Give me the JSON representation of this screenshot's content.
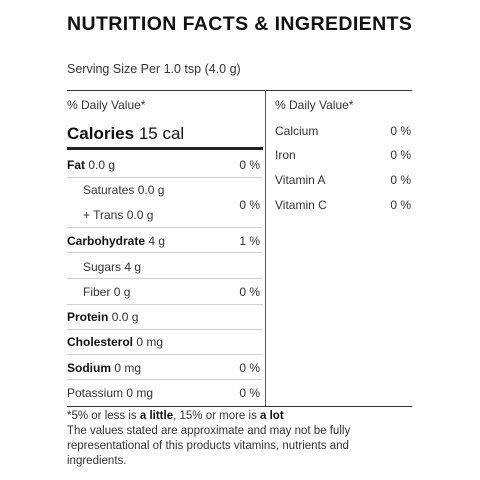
{
  "title": "NUTRITION FACTS & INGREDIENTS",
  "serving_size": "Serving Size Per 1.0 tsp (4.0 g)",
  "left_header": "% Daily Value*",
  "right_header": "% Daily Value*",
  "calories": {
    "label": "Calories",
    "value": "15 cal"
  },
  "left_rows": [
    {
      "label": "Fat",
      "amount": "0.0 g",
      "dv": "0 %"
    },
    {
      "label": "Saturates",
      "amount": "0.0 g"
    },
    {
      "label": "+ Trans",
      "amount": "0.0 g"
    },
    {
      "shared_dv": "0 %"
    },
    {
      "label": "Carbohydrate",
      "amount": "4 g",
      "dv": "1 %"
    },
    {
      "label": "Sugars",
      "amount": "4 g"
    },
    {
      "label": "Fiber",
      "amount": "0 g",
      "dv": "0 %"
    },
    {
      "label": "Protein",
      "amount": "0.0 g"
    },
    {
      "label": "Cholesterol",
      "amount": "0 mg"
    },
    {
      "label": "Sodium",
      "amount": "0 mg",
      "dv": "0 %"
    },
    {
      "label": "Potassium",
      "amount": "0 mg",
      "dv": "0 %"
    }
  ],
  "right_rows": [
    {
      "label": "Calcium",
      "dv": "0 %"
    },
    {
      "label": "Iron",
      "dv": "0 %"
    },
    {
      "label": "Vitamin A",
      "dv": "0 %"
    },
    {
      "label": "Vitamin C",
      "dv": "0 %"
    }
  ],
  "footnote": {
    "prefix": "*5% or less is ",
    "little": "a little",
    "middle": ", 15% or more is ",
    "lot": "a lot",
    "line2": "The values stated are approximate and may not be fully",
    "line3": "representational of this products vitamins, nutrients and",
    "line4": "ingredients."
  }
}
